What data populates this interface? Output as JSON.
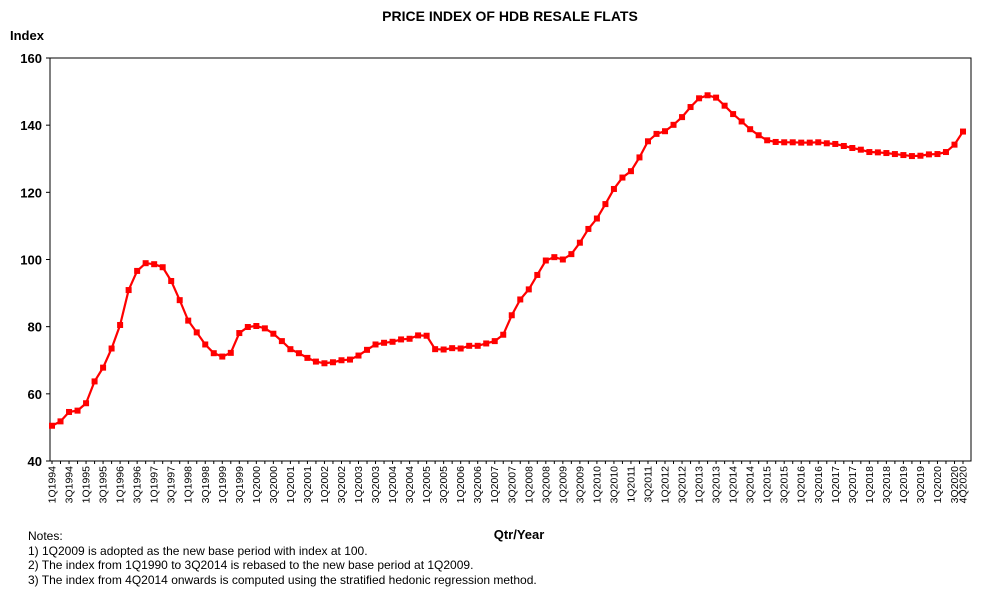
{
  "chart_data": {
    "type": "line",
    "title": "PRICE INDEX OF HDB RESALE FLATS",
    "ylabel": "Index",
    "xlabel": "Qtr/Year",
    "ylim": [
      40,
      160
    ],
    "yticks": [
      40,
      60,
      80,
      100,
      120,
      140,
      160
    ],
    "grid": false,
    "legend": "none",
    "line_color": "#ff0000",
    "x_tick_labels": [
      "1Q1994",
      "3Q1994",
      "1Q1995",
      "3Q1995",
      "1Q1996",
      "3Q1996",
      "1Q1997",
      "3Q1997",
      "1Q1998",
      "3Q1998",
      "1Q1999",
      "3Q1999",
      "1Q2000",
      "3Q2000",
      "1Q2001",
      "3Q2001",
      "1Q2002",
      "3Q2002",
      "1Q2003",
      "3Q2003",
      "1Q2004",
      "3Q2004",
      "1Q2005",
      "3Q2005",
      "1Q2006",
      "3Q2006",
      "1Q2007",
      "3Q2007",
      "1Q2008",
      "3Q2008",
      "1Q2009",
      "3Q2009",
      "1Q2010",
      "3Q2010",
      "1Q2011",
      "3Q2011",
      "1Q2012",
      "3Q2012",
      "1Q2013",
      "3Q2013",
      "1Q2014",
      "3Q2014",
      "1Q2015",
      "3Q2015",
      "1Q2016",
      "3Q2016",
      "1Q2017",
      "3Q2017",
      "1Q2018",
      "3Q2018",
      "1Q2019",
      "3Q2019",
      "1Q2020",
      "3Q2020",
      "4Q2020"
    ],
    "series": [
      {
        "x": [
          "1Q1994",
          "2Q1994",
          "3Q1994",
          "4Q1994",
          "1Q1995",
          "2Q1995",
          "3Q1995",
          "4Q1995",
          "1Q1996",
          "2Q1996",
          "3Q1996",
          "4Q1996",
          "1Q1997",
          "2Q1997",
          "3Q1997",
          "4Q1997",
          "1Q1998",
          "2Q1998",
          "3Q1998",
          "4Q1998",
          "1Q1999",
          "2Q1999",
          "3Q1999",
          "4Q1999",
          "1Q2000",
          "2Q2000",
          "3Q2000",
          "4Q2000",
          "1Q2001",
          "2Q2001",
          "3Q2001",
          "4Q2001",
          "1Q2002",
          "2Q2002",
          "3Q2002",
          "4Q2002",
          "1Q2003",
          "2Q2003",
          "3Q2003",
          "4Q2003",
          "1Q2004",
          "2Q2004",
          "3Q2004",
          "4Q2004",
          "1Q2005",
          "2Q2005",
          "3Q2005",
          "4Q2005",
          "1Q2006",
          "2Q2006",
          "3Q2006",
          "4Q2006",
          "1Q2007",
          "2Q2007",
          "3Q2007",
          "4Q2007",
          "1Q2008",
          "2Q2008",
          "3Q2008",
          "4Q2008",
          "1Q2009",
          "2Q2009",
          "3Q2009",
          "4Q2009",
          "1Q2010",
          "2Q2010",
          "3Q2010",
          "4Q2010",
          "1Q2011",
          "2Q2011",
          "3Q2011",
          "4Q2011",
          "1Q2012",
          "2Q2012",
          "3Q2012",
          "4Q2012",
          "1Q2013",
          "2Q2013",
          "3Q2013",
          "4Q2013",
          "1Q2014",
          "2Q2014",
          "3Q2014",
          "4Q2014",
          "1Q2015",
          "2Q2015",
          "3Q2015",
          "4Q2015",
          "1Q2016",
          "2Q2016",
          "3Q2016",
          "4Q2016",
          "1Q2017",
          "2Q2017",
          "3Q2017",
          "4Q2017",
          "1Q2018",
          "2Q2018",
          "3Q2018",
          "4Q2018",
          "1Q2019",
          "2Q2019",
          "3Q2019",
          "4Q2019",
          "1Q2020",
          "2Q2020",
          "3Q2020",
          "4Q2020"
        ],
        "values": [
          50.5,
          51.8,
          54.6,
          55.0,
          57.2,
          63.7,
          67.8,
          73.5,
          80.5,
          90.9,
          96.6,
          98.9,
          98.6,
          97.7,
          93.6,
          87.9,
          81.8,
          78.3,
          74.7,
          72.1,
          71.1,
          72.2,
          78.1,
          79.9,
          80.2,
          79.5,
          77.9,
          75.7,
          73.3,
          72.1,
          70.7,
          69.6,
          69.1,
          69.4,
          70.0,
          70.2,
          71.4,
          73.1,
          74.7,
          75.2,
          75.5,
          76.2,
          76.4,
          77.4,
          77.3,
          73.3,
          73.2,
          73.6,
          73.5,
          74.3,
          74.3,
          75.0,
          75.7,
          77.6,
          83.4,
          88.1,
          91.1,
          95.4,
          99.7,
          100.7,
          100.0,
          101.6,
          105.0,
          109.1,
          112.2,
          116.5,
          121.0,
          124.4,
          126.3,
          130.4,
          135.2,
          137.4,
          138.2,
          140.1,
          142.4,
          145.4,
          148.0,
          148.9,
          148.2,
          145.8,
          143.3,
          141.1,
          138.8,
          137.0,
          135.5,
          135.0,
          134.9,
          134.9,
          134.8,
          134.8,
          134.9,
          134.6,
          134.4,
          133.8,
          133.2,
          132.7,
          132.0,
          131.9,
          131.7,
          131.4,
          131.1,
          130.8,
          130.9,
          131.3,
          131.4,
          132.0,
          134.2,
          138.1
        ]
      }
    ]
  },
  "notes": {
    "heading": "Notes:",
    "lines": [
      "1) 1Q2009 is adopted as the new base period with index at 100.",
      "2) The index from 1Q1990 to 3Q2014 is rebased to the new base period at 1Q2009.",
      "3) The index from 4Q2014 onwards is computed using the stratified hedonic regression method."
    ]
  }
}
